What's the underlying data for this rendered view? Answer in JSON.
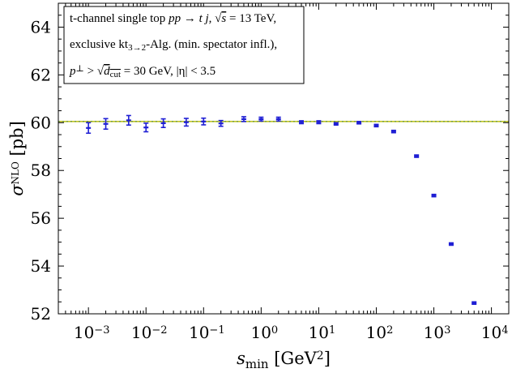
{
  "chart_data": {
    "type": "scatter",
    "xscale": "log",
    "xlim": [
      0.0003,
      20000
    ],
    "ylim": [
      52,
      65
    ],
    "xticks": [
      0.001,
      0.01,
      0.1,
      1,
      10,
      100,
      1000,
      10000
    ],
    "xtick_labels": [
      {
        "base": "10",
        "exp": "−3"
      },
      {
        "base": "10",
        "exp": "−2"
      },
      {
        "base": "10",
        "exp": "−1"
      },
      {
        "base": "10",
        "exp": "0"
      },
      {
        "base": "10",
        "exp": "1"
      },
      {
        "base": "10",
        "exp": "2"
      },
      {
        "base": "10",
        "exp": "3"
      },
      {
        "base": "10",
        "exp": "4"
      }
    ],
    "yticks": [
      52,
      54,
      56,
      58,
      60,
      62,
      64
    ],
    "ytick_labels": [
      "52",
      "54",
      "56",
      "58",
      "60",
      "62",
      "64"
    ],
    "xlabel": {
      "main": "s",
      "sub": "min",
      "unit": " [GeV",
      "sup": "2",
      "close": "]"
    },
    "ylabel": {
      "main": "σ",
      "sup": "NLO",
      "unit": " [pb]"
    },
    "reference_line": {
      "y": 60.05,
      "color": "#b5b800",
      "band": 0.03,
      "band_color": "#e6ea8a"
    },
    "grid": false,
    "legend_box": {
      "placement": "top-left",
      "line1": {
        "a": "t-channel single top  ",
        "proc": "pp → t j,  ",
        "sqrt_arg": "s",
        "b": " = 13 TeV,"
      },
      "line2": {
        "a": "exclusive kt",
        "sub": "3→2",
        "b": "-Alg. (min. spectator infl.),"
      },
      "line3": {
        "a": "p",
        "sup": "⊥",
        "b": " > ",
        "sqrt_arg": "d",
        "sqrt_sub": "cut",
        "c": " = 30 GeV,  |η| < 3.5"
      }
    },
    "series": [
      {
        "color": "#1f1fd4",
        "points": [
          {
            "x": 0.001,
            "y": 59.78,
            "err": 0.22
          },
          {
            "x": 0.002,
            "y": 59.95,
            "err": 0.22
          },
          {
            "x": 0.005,
            "y": 60.1,
            "err": 0.2
          },
          {
            "x": 0.01,
            "y": 59.8,
            "err": 0.18
          },
          {
            "x": 0.02,
            "y": 59.98,
            "err": 0.18
          },
          {
            "x": 0.05,
            "y": 60.02,
            "err": 0.16
          },
          {
            "x": 0.1,
            "y": 60.05,
            "err": 0.14
          },
          {
            "x": 0.2,
            "y": 59.97,
            "err": 0.12
          },
          {
            "x": 0.5,
            "y": 60.15,
            "err": 0.1
          },
          {
            "x": 1,
            "y": 60.15,
            "err": 0.08
          },
          {
            "x": 2,
            "y": 60.15,
            "err": 0.08
          },
          {
            "x": 5,
            "y": 60.02,
            "err": 0.06
          },
          {
            "x": 10,
            "y": 60.02,
            "err": 0.06
          },
          {
            "x": 20,
            "y": 59.95,
            "err": 0.05
          },
          {
            "x": 50,
            "y": 60.0,
            "err": 0.05
          },
          {
            "x": 100,
            "y": 59.88,
            "err": 0.05
          },
          {
            "x": 200,
            "y": 59.63,
            "err": 0.05
          },
          {
            "x": 500,
            "y": 58.6,
            "err": 0.05
          },
          {
            "x": 1000,
            "y": 56.95,
            "err": 0.05
          },
          {
            "x": 2000,
            "y": 54.92,
            "err": 0.05
          },
          {
            "x": 5000,
            "y": 52.45,
            "err": 0.05
          }
        ]
      }
    ]
  }
}
